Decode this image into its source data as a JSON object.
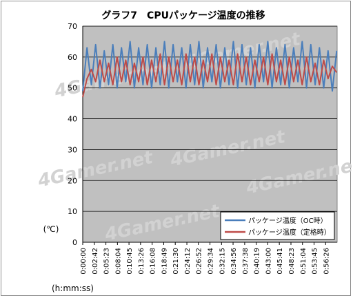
{
  "chart_data": {
    "type": "line",
    "title": "グラフ7　CPUパッケージ温度の推移",
    "ylabel": "(℃)",
    "xlabel": "(h:mm:ss)",
    "ylim": [
      0,
      70
    ],
    "yticks": [
      0,
      10,
      20,
      30,
      40,
      50,
      60,
      70
    ],
    "grid": true,
    "legend_position": "bottom-right",
    "x_tick_labels": [
      "0:00:00",
      "0:02:42",
      "0:05:23",
      "0:08:04",
      "0:10:45",
      "0:13:26",
      "0:16:08",
      "0:18:49",
      "0:21:30",
      "0:24:12",
      "0:26:52",
      "0:29:34",
      "0:32:15",
      "0:34:56",
      "0:37:38",
      "0:40:19",
      "0:43:00",
      "0:45:41",
      "0:48:23",
      "0:51:04",
      "0:53:45",
      "0:56:26"
    ],
    "duration": "0:59:07",
    "series": [
      {
        "name": "パッケージ温度（OC時）",
        "color": "#4a7ebb",
        "x": [
          "0:00:00",
          "0:01:00",
          "0:02:00",
          "0:03:00",
          "0:04:00",
          "0:05:00",
          "0:06:00",
          "0:07:00",
          "0:08:00",
          "0:09:00",
          "0:10:00",
          "0:11:00",
          "0:12:00",
          "0:13:00",
          "0:14:00",
          "0:15:00",
          "0:16:00",
          "0:17:00",
          "0:18:00",
          "0:19:00",
          "0:20:00",
          "0:21:00",
          "0:22:00",
          "0:23:00",
          "0:24:00",
          "0:25:00",
          "0:26:00",
          "0:27:00",
          "0:28:00",
          "0:29:00",
          "0:30:00",
          "0:31:00",
          "0:32:00",
          "0:33:00",
          "0:34:00",
          "0:35:00",
          "0:36:00",
          "0:37:00",
          "0:38:00",
          "0:39:00",
          "0:40:00",
          "0:41:00",
          "0:42:00",
          "0:43:00",
          "0:44:00",
          "0:45:00",
          "0:46:00",
          "0:47:00",
          "0:48:00",
          "0:49:00",
          "0:50:00",
          "0:51:00",
          "0:52:00",
          "0:53:00",
          "0:54:00",
          "0:55:00",
          "0:56:00",
          "0:57:00",
          "0:58:00",
          "0:59:00"
        ],
        "values": [
          49,
          63,
          51,
          64,
          50,
          62,
          51,
          64,
          50,
          63,
          52,
          65,
          50,
          63,
          51,
          64,
          50,
          63,
          51,
          65,
          50,
          64,
          52,
          63,
          50,
          64,
          51,
          65,
          50,
          63,
          52,
          64,
          50,
          63,
          51,
          65,
          50,
          64,
          51,
          63,
          50,
          64,
          52,
          65,
          50,
          63,
          51,
          64,
          50,
          63,
          52,
          65,
          50,
          64,
          51,
          63,
          50,
          62,
          49,
          62
        ]
      },
      {
        "name": "パッケージ温度（定格時）",
        "color": "#be4b48",
        "x": [
          "0:00:00",
          "0:01:00",
          "0:02:00",
          "0:03:00",
          "0:04:00",
          "0:05:00",
          "0:06:00",
          "0:07:00",
          "0:08:00",
          "0:09:00",
          "0:10:00",
          "0:11:00",
          "0:12:00",
          "0:13:00",
          "0:14:00",
          "0:15:00",
          "0:16:00",
          "0:17:00",
          "0:18:00",
          "0:19:00",
          "0:20:00",
          "0:21:00",
          "0:22:00",
          "0:23:00",
          "0:24:00",
          "0:25:00",
          "0:26:00",
          "0:27:00",
          "0:28:00",
          "0:29:00",
          "0:30:00",
          "0:31:00",
          "0:32:00",
          "0:33:00",
          "0:34:00",
          "0:35:00",
          "0:36:00",
          "0:37:00",
          "0:38:00",
          "0:39:00",
          "0:40:00",
          "0:41:00",
          "0:42:00",
          "0:43:00",
          "0:44:00",
          "0:45:00",
          "0:46:00",
          "0:47:00",
          "0:48:00",
          "0:49:00",
          "0:50:00",
          "0:51:00",
          "0:52:00",
          "0:53:00",
          "0:54:00",
          "0:55:00",
          "0:56:00",
          "0:57:00",
          "0:58:00",
          "0:59:00"
        ],
        "values": [
          47,
          53,
          56,
          52,
          59,
          52,
          58,
          51,
          60,
          52,
          59,
          51,
          58,
          52,
          60,
          51,
          59,
          52,
          61,
          51,
          60,
          52,
          59,
          51,
          61,
          52,
          60,
          51,
          59,
          52,
          61,
          51,
          60,
          52,
          59,
          51,
          61,
          52,
          60,
          51,
          59,
          52,
          60,
          51,
          61,
          52,
          59,
          51,
          60,
          52,
          59,
          51,
          60,
          52,
          58,
          51,
          59,
          53,
          57,
          55
        ]
      }
    ]
  },
  "watermark_text": "4Gamer.net"
}
